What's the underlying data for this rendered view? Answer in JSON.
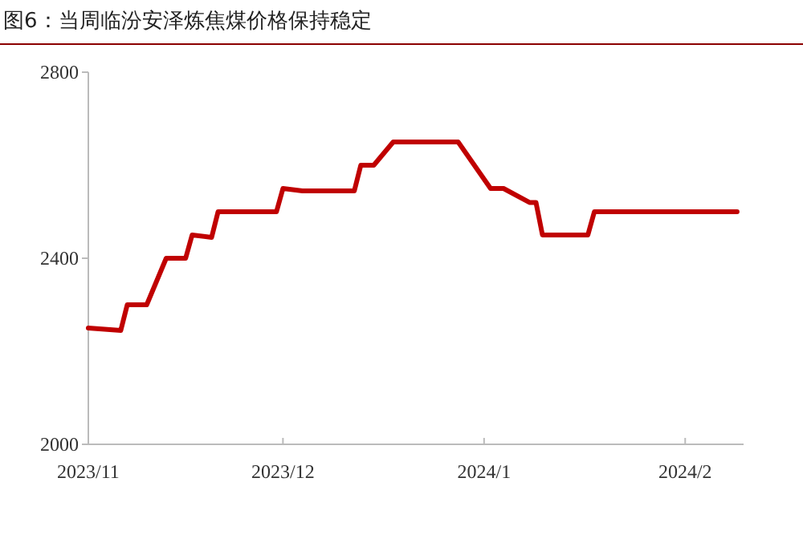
{
  "chart_data": {
    "type": "line",
    "title": "图6：当周临汾安泽炼焦煤价格保持稳定",
    "x": [
      "2023-11-01",
      "2023-11-06",
      "2023-11-07",
      "2023-11-10",
      "2023-11-13",
      "2023-11-16",
      "2023-11-17",
      "2023-11-20",
      "2023-11-21",
      "2023-11-30",
      "2023-12-01",
      "2023-12-04",
      "2023-12-12",
      "2023-12-13",
      "2023-12-15",
      "2023-12-18",
      "2023-12-28",
      "2024-01-02",
      "2024-01-04",
      "2024-01-08",
      "2024-01-09",
      "2024-01-10",
      "2024-01-17",
      "2024-01-18",
      "2024-02-09"
    ],
    "series": [
      {
        "color": "#c00000",
        "values": [
          2250,
          2245,
          2300,
          2300,
          2400,
          2400,
          2450,
          2445,
          2500,
          2500,
          2550,
          2545,
          2545,
          2600,
          2600,
          2650,
          2650,
          2550,
          2550,
          2520,
          2520,
          2450,
          2450,
          2500,
          2500
        ]
      }
    ],
    "xlim": [
      "2023-11-01",
      "2024-02-10"
    ],
    "xticks": [
      {
        "value": "2023-11-01",
        "label": "2023/11"
      },
      {
        "value": "2023-12-01",
        "label": "2023/12"
      },
      {
        "value": "2024-01-01",
        "label": "2024/1"
      },
      {
        "value": "2024-02-01",
        "label": "2024/2"
      }
    ],
    "ylim": [
      2000,
      2800
    ],
    "yticks": [
      2000,
      2400,
      2800
    ],
    "grid": false,
    "marker": "none",
    "line_style": "solid"
  }
}
